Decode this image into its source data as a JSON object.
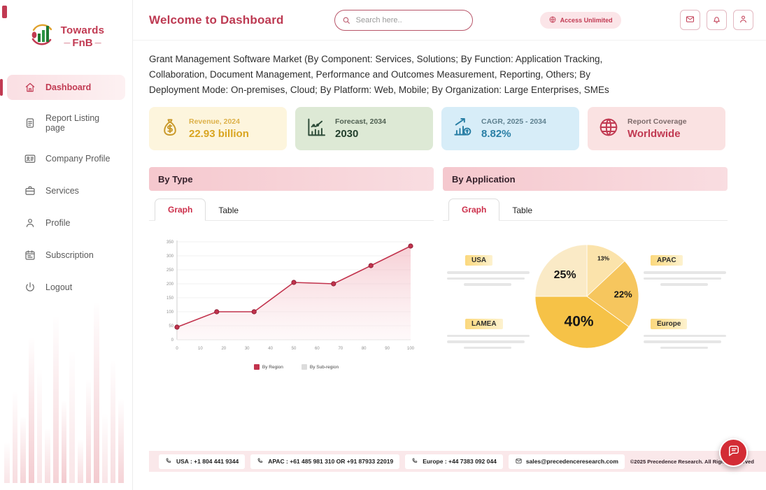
{
  "sidebar": {
    "logo": {
      "line1": "Towards",
      "line2": "FnB"
    },
    "items": [
      {
        "label": "Dashboard",
        "icon": "home",
        "active": true
      },
      {
        "label": "Report Listing page",
        "icon": "report",
        "active": false
      },
      {
        "label": "Company Profile",
        "icon": "id-card",
        "active": false
      },
      {
        "label": "Services",
        "icon": "briefcase",
        "active": false
      },
      {
        "label": "Profile",
        "icon": "user",
        "active": false
      },
      {
        "label": "Subscription",
        "icon": "subscription",
        "active": false
      },
      {
        "label": "Logout",
        "icon": "logout",
        "active": false
      }
    ]
  },
  "header": {
    "title": "Welcome to Dashboard",
    "search_placeholder": "Search here..",
    "badge": "Access Unlimited",
    "action_icons": [
      "mail",
      "bell",
      "user"
    ]
  },
  "market_description": "Grant Management Software Market (By Component: Services, Solutions; By Function: Application Tracking, Collaboration, Document Management, Performance and Outcomes Measurement, Reporting, Others; By Deployment Mode: On-premises, Cloud; By Platform: Web, Mobile; By Organization: Large Enterprises, SMEs",
  "stat_cards": [
    {
      "label": "Revenue, 2024",
      "value": "22.93 billion",
      "icon": "money-bag",
      "bg": "#fdf5dd",
      "label_color": "#ddb14a",
      "value_color": "#d9a521",
      "icon_color": "#c9992a"
    },
    {
      "label": "Forecast, 2034",
      "value": "2030",
      "icon": "forecast-chart",
      "bg": "#dde9d5",
      "label_color": "#4f5f51",
      "value_color": "#23402e",
      "icon_color": "#2f4d3a"
    },
    {
      "label": "CAGR, 2025 - 2034",
      "value": "8.82%",
      "icon": "cagr-chart",
      "bg": "#d7edf8",
      "label_color": "#5e808f",
      "value_color": "#2a7fa5",
      "icon_color": "#2a7fa5"
    },
    {
      "label": "Report Coverage",
      "value": "Worldwide",
      "icon": "globe",
      "bg": "#fae2e2",
      "label_color": "#7c6a6a",
      "value_color": "#c13a52",
      "icon_color": "#c13a52"
    }
  ],
  "panels": [
    {
      "title": "By Type",
      "tabs": [
        "Graph",
        "Table"
      ],
      "active_tab": "Graph"
    },
    {
      "title": "By Application",
      "tabs": [
        "Graph",
        "Table"
      ],
      "active_tab": "Graph"
    }
  ],
  "chart_data": [
    {
      "type": "line",
      "panel": "By Type",
      "x": [
        0,
        17,
        33,
        50,
        67,
        83,
        100
      ],
      "series": [
        {
          "name": "By Region",
          "color": "#c2334d",
          "values": [
            45,
            100,
            100,
            205,
            200,
            265,
            335
          ]
        }
      ],
      "xticks": [
        0,
        10,
        20,
        30,
        40,
        50,
        60,
        70,
        80,
        90,
        100
      ],
      "yticks": [
        0,
        50,
        100,
        150,
        200,
        250,
        300,
        350
      ],
      "xlim": [
        0,
        100
      ],
      "ylim": [
        0,
        350
      ],
      "grid": true,
      "area_fill": true,
      "legend_position": "bottom",
      "legend": [
        {
          "label": "By Region",
          "color": "#c2334d"
        },
        {
          "label": "By Sub-region",
          "color": "#dcdcdc"
        }
      ]
    },
    {
      "type": "pie",
      "panel": "By Application",
      "slices": [
        {
          "label": "APAC",
          "value": 13,
          "pct_label": "13%",
          "color": "#fbe3ab"
        },
        {
          "label": "Europe",
          "value": 22,
          "pct_label": "22%",
          "color": "#f6c65e"
        },
        {
          "label": "LAMEA",
          "value": 40,
          "pct_label": "40%",
          "color": "#f6c247"
        },
        {
          "label": "USA",
          "value": 25,
          "pct_label": "25%",
          "color": "#faeac6"
        }
      ],
      "labels": [
        {
          "name": "USA",
          "position": "top-left"
        },
        {
          "name": "APAC",
          "position": "top-right"
        },
        {
          "name": "LAMEA",
          "position": "bottom-left"
        },
        {
          "name": "Europe",
          "position": "bottom-right"
        }
      ]
    }
  ],
  "footer": {
    "contacts": [
      {
        "icon": "phone",
        "text": "USA : +1 804 441 9344"
      },
      {
        "icon": "phone",
        "text": "APAC : +61 485 981 310 OR +91 87933 22019"
      },
      {
        "icon": "phone",
        "text": "Europe : +44 7383 092 044"
      },
      {
        "icon": "mail",
        "text": "sales@precedenceresearch.com"
      }
    ],
    "copyright": "©2025 Precedence Research. All Rights Reserved"
  }
}
